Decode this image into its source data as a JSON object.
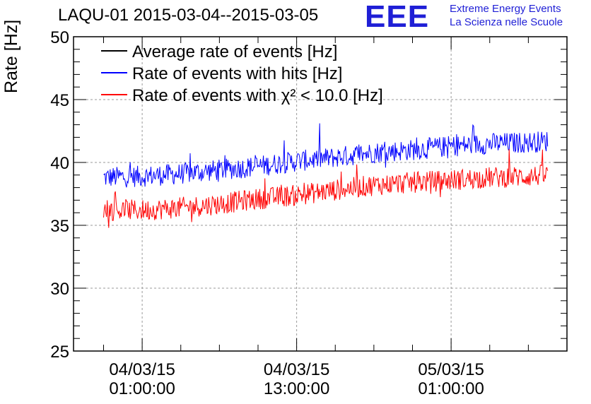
{
  "title": "LAQU-01 2015-03-04--2015-03-05",
  "logo": {
    "mark": "EEE",
    "line1": "Extreme Energy Events",
    "line2": "La Scienza nelle Scuole"
  },
  "colors": {
    "black": "#000000",
    "blue": "#0000ff",
    "red": "#ff0000",
    "grid": "#9a9a9a",
    "logo": "#1f1fd6"
  },
  "chart_data": {
    "type": "line",
    "ylabel": "Rate [Hz]",
    "xlabel": "",
    "ylim": [
      25,
      50
    ],
    "yticks": [
      25,
      30,
      35,
      40,
      45,
      50
    ],
    "xlim": [
      "2015-03-03 19:40",
      "2015-03-05 10:00"
    ],
    "xticks": [
      {
        "value": "2015-03-04 01:00",
        "line1": "04/03/15",
        "line2": "01:00:00"
      },
      {
        "value": "2015-03-04 13:00",
        "line1": "04/03/15",
        "line2": "13:00:00"
      },
      {
        "value": "2015-03-05 01:00",
        "line1": "05/03/15",
        "line2": "01:00:00"
      }
    ],
    "grid": true,
    "legend_position": "top-left",
    "legend": [
      {
        "label": "Average rate of events [Hz]",
        "color": "#000000"
      },
      {
        "label": "Rate of events with hits [Hz]",
        "color": "#0000ff"
      },
      {
        "label": "Rate of events with χ² < 10.0 [Hz]",
        "color": "#ff0000"
      }
    ],
    "series": [
      {
        "name": "Rate of events with hits [Hz]",
        "color": "#0000ff",
        "x": [
          "2015-03-03 22:00",
          "2015-03-04 01:00",
          "2015-03-04 04:00",
          "2015-03-04 07:00",
          "2015-03-04 10:00",
          "2015-03-04 13:00",
          "2015-03-04 16:00",
          "2015-03-04 19:00",
          "2015-03-04 22:00",
          "2015-03-05 01:00",
          "2015-03-05 04:00",
          "2015-03-05 07:00",
          "2015-03-05 08:30"
        ],
        "y": [
          38.8,
          38.9,
          39.1,
          39.4,
          39.7,
          40.1,
          40.4,
          40.8,
          41.0,
          41.3,
          41.5,
          41.6,
          41.7
        ],
        "noise": 1.0
      },
      {
        "name": "Rate of events with χ² < 10.0 [Hz]",
        "color": "#ff0000",
        "x": [
          "2015-03-03 22:00",
          "2015-03-04 01:00",
          "2015-03-04 04:00",
          "2015-03-04 07:00",
          "2015-03-04 10:00",
          "2015-03-04 13:00",
          "2015-03-04 16:00",
          "2015-03-04 19:00",
          "2015-03-04 22:00",
          "2015-03-05 01:00",
          "2015-03-05 04:00",
          "2015-03-05 07:00",
          "2015-03-05 08:30"
        ],
        "y": [
          36.2,
          36.2,
          36.4,
          36.7,
          37.1,
          37.4,
          37.8,
          38.2,
          38.4,
          38.6,
          38.8,
          38.9,
          39.0
        ],
        "noise": 1.0
      }
    ]
  }
}
